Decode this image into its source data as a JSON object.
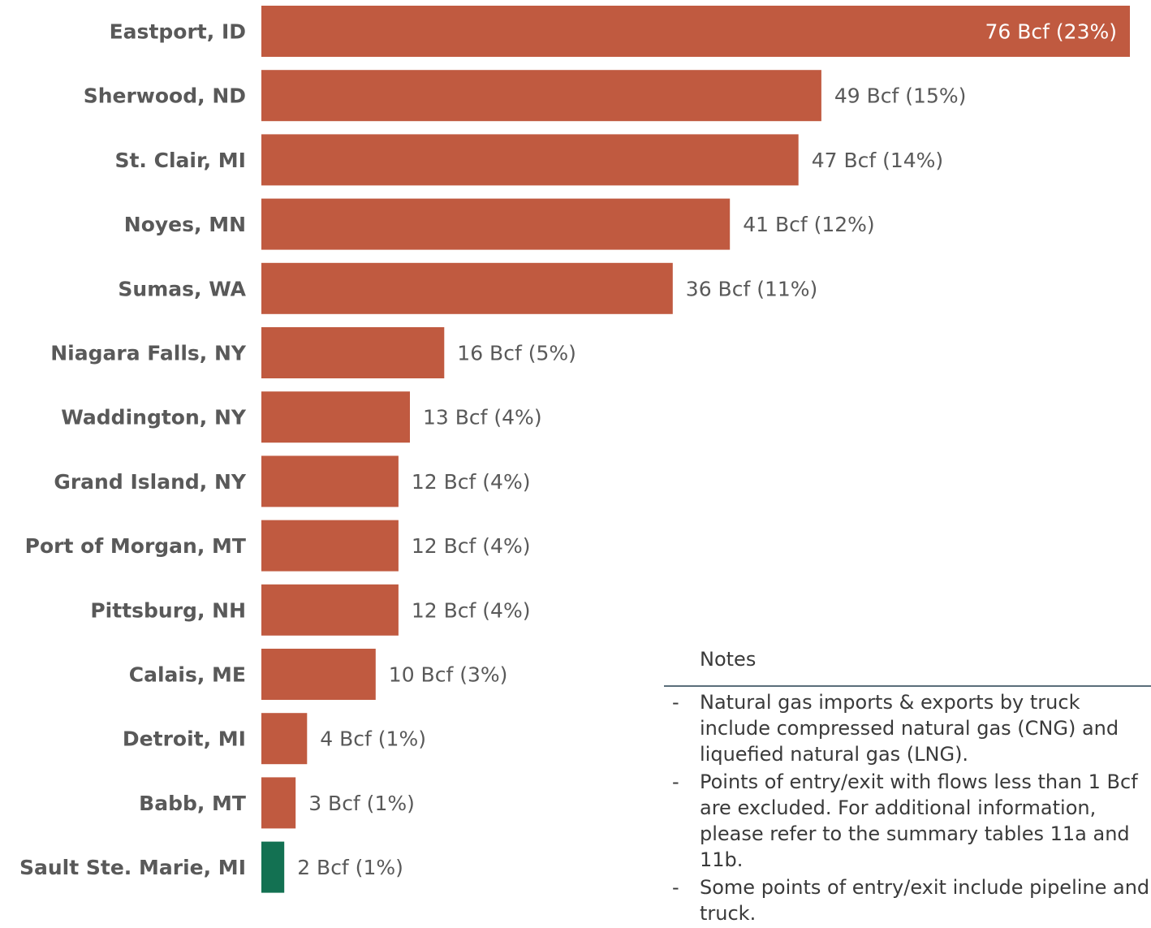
{
  "chart_data": {
    "type": "bar",
    "orientation": "horizontal",
    "categories": [
      "Eastport, ID",
      "Sherwood, ND",
      "St. Clair, MI",
      "Noyes, MN",
      "Sumas, WA",
      "Niagara Falls, NY",
      "Waddington, NY",
      "Grand Island, NY",
      "Port of Morgan, MT",
      "Pittsburg, NH",
      "Calais, ME",
      "Detroit, MI",
      "Babb, MT",
      "Sault Ste. Marie, MI"
    ],
    "values": [
      76,
      49,
      47,
      41,
      36,
      16,
      13,
      12,
      12,
      12,
      10,
      4,
      3,
      2
    ],
    "data_labels": [
      "76 Bcf (23%)",
      "49 Bcf (15%)",
      "47 Bcf (14%)",
      "41 Bcf (12%)",
      "36 Bcf (11%)",
      "16 Bcf (5%)",
      "13 Bcf (4%)",
      "12 Bcf (4%)",
      "12 Bcf (4%)",
      "12 Bcf (4%)",
      "10 Bcf (3%)",
      "4 Bcf (1%)",
      "3 Bcf (1%)",
      "2 Bcf (1%)"
    ],
    "bar_colors": [
      "#c05a40",
      "#c05a40",
      "#c05a40",
      "#c05a40",
      "#c05a40",
      "#c05a40",
      "#c05a40",
      "#c05a40",
      "#c05a40",
      "#c05a40",
      "#c05a40",
      "#c05a40",
      "#c05a40",
      "#137152"
    ],
    "unit": "Bcf",
    "xlim": [
      0,
      76
    ],
    "grid": false,
    "legend": "none"
  },
  "notes": {
    "title": "Notes",
    "items": [
      "Natural gas imports & exports by truck include compressed natural gas (CNG) and liquefied natural gas (LNG).",
      "Points of entry/exit with flows less than 1 Bcf are excluded. For additional information, please refer to the summary tables 11a and 11b.",
      "Some points of entry/exit include pipeline and truck."
    ]
  },
  "colors": {
    "bar": "#c05a40",
    "highlight_bar": "#137152",
    "text": "#595959",
    "notes_rule": "#5a6e7a"
  }
}
